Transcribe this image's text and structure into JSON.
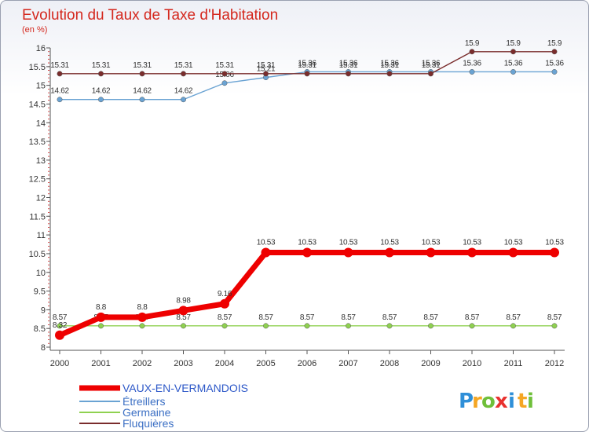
{
  "chart_data": {
    "type": "line",
    "title": "Evolution du Taux de Taxe d'Habitation",
    "subtitle": "(en %)",
    "xlabel": "",
    "ylabel": "",
    "x": [
      "2000",
      "2001",
      "2002",
      "2003",
      "2004",
      "2005",
      "2006",
      "2007",
      "2008",
      "2009",
      "2010",
      "2011",
      "2012"
    ],
    "ylim": [
      8,
      16
    ],
    "yticks": [
      "8",
      "8.5",
      "9",
      "9.5",
      "10",
      "10.5",
      "11",
      "11.5",
      "12",
      "12.5",
      "13",
      "13.5",
      "14",
      "14.5",
      "15",
      "15.5",
      "16"
    ],
    "grid": false,
    "legend_position": "bottom-left",
    "series": [
      {
        "name": "VAUX-EN-VERMANDOIS",
        "color": "#ee0000",
        "values": [
          8.32,
          8.8,
          8.8,
          8.98,
          9.16,
          10.53,
          10.53,
          10.53,
          10.53,
          10.53,
          10.53,
          10.53,
          10.53
        ],
        "labels": [
          "8.32",
          "8.8",
          "8.8",
          "8.98",
          "9.16",
          "10.53",
          "10.53",
          "10.53",
          "10.53",
          "10.53",
          "10.53",
          "10.53",
          "10.53"
        ]
      },
      {
        "name": "Étreillers",
        "color": "#6aa3d3",
        "values": [
          14.62,
          14.62,
          14.62,
          14.62,
          15.06,
          15.21,
          15.36,
          15.36,
          15.36,
          15.36,
          15.36,
          15.36,
          15.36
        ],
        "labels": [
          "14.62",
          "14.62",
          "14.62",
          "14.62",
          "15.06",
          "15.21",
          "15.36",
          "15.36",
          "15.36",
          "15.36",
          "15.36",
          "15.36",
          "15.36"
        ]
      },
      {
        "name": "Germaine",
        "color": "#8fd150",
        "values": [
          8.57,
          8.57,
          8.57,
          8.57,
          8.57,
          8.57,
          8.57,
          8.57,
          8.57,
          8.57,
          8.57,
          8.57,
          8.57
        ],
        "labels": [
          "8.57",
          "8.57",
          "8.57",
          "8.57",
          "8.57",
          "8.57",
          "8.57",
          "8.57",
          "8.57",
          "8.57",
          "8.57",
          "8.57",
          "8.57"
        ]
      },
      {
        "name": "Fluquières",
        "color": "#7a2c2c",
        "values": [
          15.31,
          15.31,
          15.31,
          15.31,
          15.31,
          15.31,
          15.31,
          15.31,
          15.31,
          15.31,
          15.9,
          15.9,
          15.9
        ],
        "labels": [
          "15.31",
          "15.31",
          "15.31",
          "15.31",
          "15.31",
          "15.31",
          "15.31",
          "15.31",
          "15.31",
          "15.31",
          "15.9",
          "15.9",
          "15.9"
        ]
      }
    ]
  },
  "logo": {
    "letters": [
      "P",
      "r",
      "o",
      "x",
      "i",
      "t",
      "i"
    ],
    "colors": [
      "#2f8fd8",
      "#f5a623",
      "#6fbf3a",
      "#e8312f",
      "#2f8fd8",
      "#f5a623",
      "#6fbf3a"
    ]
  }
}
